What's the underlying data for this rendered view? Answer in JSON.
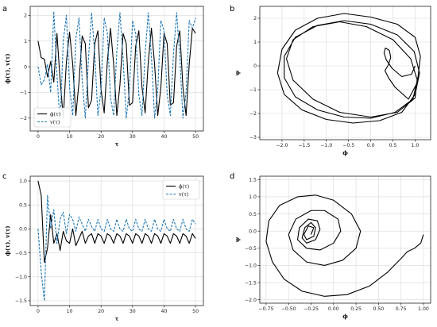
{
  "figure": {
    "panel_letters": [
      "a",
      "b",
      "c",
      "d"
    ]
  },
  "colors": {
    "phi": "#000000",
    "v": "#1f77b4",
    "grid": "#d9d9d9",
    "axis": "#000000"
  },
  "chart_data": [
    {
      "panel": "a",
      "type": "line",
      "title": "",
      "xlabel": "τ",
      "ylabel": "ϕ(τ), v(τ)",
      "xlim": [
        -2.5,
        52.5
      ],
      "ylim": [
        -2.5,
        2.35
      ],
      "xticks": [
        0,
        10,
        20,
        30,
        40,
        50
      ],
      "yticks": [
        -2,
        -1,
        0,
        1,
        2
      ],
      "grid": true,
      "legend": {
        "placement": "lower-left",
        "entries": [
          "ϕ(τ)",
          "v(τ)"
        ]
      },
      "series": [
        {
          "name": "ϕ(τ)",
          "style": "solid",
          "color": "#000000",
          "x": [
            0,
            1,
            2,
            3,
            4,
            5,
            6,
            7,
            8,
            9,
            10,
            11,
            12,
            13,
            14,
            15,
            16,
            17,
            18,
            19,
            20,
            21,
            22,
            23,
            24,
            25,
            26,
            27,
            28,
            29,
            30,
            31,
            32,
            33,
            34,
            35,
            36,
            37,
            38,
            39,
            40,
            41,
            42,
            43,
            44,
            45,
            46,
            47,
            48,
            49,
            50
          ],
          "y": [
            1.0,
            0.35,
            0.3,
            -0.4,
            0.2,
            -0.6,
            1.3,
            -0.5,
            -2.0,
            0.2,
            1.35,
            0.1,
            -1.9,
            -0.6,
            1.2,
            0.9,
            -1.6,
            -1.3,
            0.9,
            1.4,
            -0.9,
            -1.8,
            0.2,
            1.5,
            0.1,
            -1.9,
            -0.7,
            1.3,
            0.9,
            -1.5,
            -1.4,
            0.8,
            1.4,
            -0.8,
            -1.8,
            0.2,
            1.5,
            0.1,
            -1.9,
            -0.8,
            1.3,
            0.9,
            -1.5,
            -1.4,
            0.8,
            1.4,
            -0.8,
            -1.9,
            0.1,
            1.5,
            1.3
          ]
        },
        {
          "name": "v(τ)",
          "style": "dashed",
          "color": "#1f77b4",
          "x": [
            0,
            1,
            2,
            3,
            4,
            5,
            6,
            7,
            8,
            9,
            10,
            11,
            12,
            13,
            14,
            15,
            16,
            17,
            18,
            19,
            20,
            21,
            22,
            23,
            24,
            25,
            26,
            27,
            28,
            29,
            30,
            31,
            32,
            33,
            34,
            35,
            36,
            37,
            38,
            39,
            40,
            41,
            42,
            43,
            44,
            45,
            46,
            47,
            48,
            49,
            50
          ],
          "y": [
            0.0,
            -0.7,
            -0.5,
            0.1,
            -1.0,
            2.15,
            -0.3,
            -2.2,
            1.0,
            2.0,
            -0.8,
            -1.9,
            1.1,
            1.9,
            -0.5,
            -2.0,
            0.3,
            2.1,
            0.5,
            -1.9,
            -0.9,
            1.9,
            1.3,
            -1.2,
            -1.9,
            0.6,
            2.1,
            0.3,
            -2.0,
            -0.9,
            1.8,
            1.3,
            -1.1,
            -1.9,
            0.5,
            2.1,
            0.4,
            -2.0,
            -0.9,
            1.8,
            1.4,
            -1.1,
            -1.9,
            0.5,
            2.1,
            0.4,
            -2.0,
            -1.0,
            1.8,
            1.5,
            1.9
          ]
        }
      ]
    },
    {
      "panel": "b",
      "type": "line",
      "title": "",
      "xlabel": "ϕ",
      "ylabel": "ψ",
      "xlim": [
        -2.5,
        1.35
      ],
      "ylim": [
        -3.1,
        2.5
      ],
      "xticks": [
        -2.0,
        -1.5,
        -1.0,
        -0.5,
        0.0,
        0.5,
        1.0
      ],
      "yticks": [
        -3,
        -2,
        -1,
        0,
        1,
        2
      ],
      "grid": true,
      "legend": null,
      "series": [
        {
          "style": "solid",
          "color": "#000000",
          "x": [
            1.0,
            0.92,
            0.7,
            0.48,
            0.35,
            0.3,
            0.33,
            0.42,
            0.45,
            0.4,
            0.32,
            0.4,
            0.55,
            0.85,
            1.05,
            1.12,
            1.0,
            0.6,
            0.0,
            -0.6,
            -1.2,
            -1.7,
            -2.0,
            -2.1,
            -1.95,
            -1.55,
            -1.0,
            -0.4,
            0.2,
            0.7,
            1.0,
            1.1,
            0.98,
            0.6,
            0.0,
            -0.6,
            -1.2,
            -1.7,
            -1.95,
            -1.95,
            -1.7,
            -1.2,
            -0.6,
            0.0,
            0.55,
            0.95,
            1.05,
            0.9,
            0.5,
            -0.1,
            -0.7,
            -1.3,
            -1.75,
            -1.9,
            -1.75,
            -1.3,
            -0.7,
            0.0,
            0.6,
            1.0,
            1.05
          ],
          "y": [
            0.0,
            -0.35,
            -0.45,
            -0.1,
            0.25,
            0.55,
            0.75,
            0.65,
            0.35,
            0.05,
            -0.2,
            -0.5,
            -0.9,
            -1.4,
            -0.7,
            0.4,
            1.2,
            1.75,
            2.05,
            2.2,
            2.0,
            1.5,
            0.7,
            -0.3,
            -1.2,
            -1.85,
            -2.25,
            -2.4,
            -2.3,
            -1.95,
            -1.2,
            -0.3,
            0.6,
            1.3,
            1.75,
            1.9,
            1.7,
            1.2,
            0.4,
            -0.5,
            -1.3,
            -1.85,
            -2.15,
            -2.2,
            -1.95,
            -1.4,
            -0.6,
            0.3,
            1.1,
            1.65,
            1.85,
            1.65,
            1.1,
            0.3,
            -0.6,
            -1.4,
            -1.95,
            -2.15,
            -1.95,
            -1.35,
            -0.5
          ]
        }
      ]
    },
    {
      "panel": "c",
      "type": "line",
      "title": "",
      "xlabel": "τ",
      "ylabel": "ϕ(τ), v(τ)",
      "xlim": [
        -2.5,
        52.5
      ],
      "ylim": [
        -1.6,
        1.1
      ],
      "xticks": [
        0,
        10,
        20,
        30,
        40,
        50
      ],
      "yticks": [
        -1.5,
        -1.0,
        -0.5,
        0.0,
        0.5,
        1.0
      ],
      "grid": true,
      "legend": {
        "placement": "top-right",
        "entries": [
          "ϕ(τ)",
          "v(τ)"
        ]
      },
      "series": [
        {
          "name": "ϕ(τ)",
          "style": "solid",
          "color": "#000000",
          "x": [
            0,
            1,
            2,
            3,
            4,
            5,
            6,
            7,
            8,
            9,
            10,
            11,
            12,
            13,
            14,
            15,
            16,
            17,
            18,
            19,
            20,
            21,
            22,
            23,
            24,
            25,
            26,
            27,
            28,
            29,
            30,
            31,
            32,
            33,
            34,
            35,
            36,
            37,
            38,
            39,
            40,
            41,
            42,
            43,
            44,
            45,
            46,
            47,
            48,
            49,
            50
          ],
          "y": [
            1.0,
            0.7,
            -0.7,
            -0.4,
            0.3,
            -0.3,
            -0.1,
            -0.45,
            -0.05,
            -0.25,
            -0.3,
            0.0,
            -0.35,
            -0.2,
            -0.05,
            -0.3,
            -0.15,
            -0.1,
            -0.3,
            -0.1,
            -0.15,
            -0.3,
            -0.1,
            -0.15,
            -0.3,
            -0.1,
            -0.15,
            -0.3,
            -0.1,
            -0.15,
            -0.3,
            -0.1,
            -0.15,
            -0.3,
            -0.1,
            -0.15,
            -0.3,
            -0.1,
            -0.15,
            -0.3,
            -0.1,
            -0.15,
            -0.3,
            -0.1,
            -0.15,
            -0.3,
            -0.1,
            -0.15,
            -0.3,
            -0.1,
            -0.2
          ]
        },
        {
          "name": "v(τ)",
          "style": "dashed",
          "color": "#1f77b4",
          "x": [
            0,
            1,
            2,
            3,
            4,
            5,
            6,
            7,
            8,
            9,
            10,
            11,
            12,
            13,
            14,
            15,
            16,
            17,
            18,
            19,
            20,
            21,
            22,
            23,
            24,
            25,
            26,
            27,
            28,
            29,
            30,
            31,
            32,
            33,
            34,
            35,
            36,
            37,
            38,
            39,
            40,
            41,
            42,
            43,
            44,
            45,
            46,
            47,
            48,
            49,
            50
          ],
          "y": [
            0.0,
            -0.9,
            -1.5,
            0.7,
            0.0,
            0.4,
            -0.3,
            0.2,
            0.35,
            -0.1,
            0.3,
            0.2,
            -0.05,
            0.25,
            0.1,
            -0.05,
            0.2,
            0.05,
            -0.05,
            0.2,
            0.0,
            -0.05,
            0.2,
            0.0,
            -0.05,
            0.2,
            0.0,
            -0.05,
            0.2,
            0.0,
            -0.05,
            0.2,
            0.0,
            -0.05,
            0.2,
            0.0,
            -0.05,
            0.2,
            0.0,
            -0.05,
            0.2,
            0.0,
            -0.05,
            0.2,
            0.0,
            -0.05,
            0.2,
            0.0,
            -0.05,
            0.2,
            0.1
          ]
        }
      ]
    },
    {
      "panel": "d",
      "type": "line",
      "title": "",
      "xlabel": "ϕ",
      "ylabel": "ψ",
      "xlim": [
        -0.82,
        1.08
      ],
      "ylim": [
        -2.1,
        1.6
      ],
      "xticks": [
        -0.75,
        -0.5,
        -0.25,
        0.0,
        0.25,
        0.5,
        0.75,
        1.0
      ],
      "yticks": [
        -2.0,
        -1.5,
        -1.0,
        -0.5,
        0.0,
        0.5,
        1.0,
        1.5
      ],
      "grid": true,
      "legend": null,
      "series": [
        {
          "style": "solid",
          "color": "#000000",
          "x": [
            1.0,
            0.97,
            0.9,
            0.82,
            0.75,
            0.6,
            0.4,
            0.15,
            -0.1,
            -0.35,
            -0.55,
            -0.68,
            -0.75,
            -0.72,
            -0.6,
            -0.4,
            -0.2,
            0.0,
            0.2,
            0.3,
            0.25,
            0.1,
            -0.1,
            -0.3,
            -0.45,
            -0.5,
            -0.42,
            -0.25,
            -0.1,
            0.05,
            0.08,
            0.0,
            -0.15,
            -0.3,
            -0.4,
            -0.38,
            -0.28,
            -0.18,
            -0.15,
            -0.2,
            -0.3,
            -0.35,
            -0.32,
            -0.25,
            -0.2,
            -0.22,
            -0.3,
            -0.33,
            -0.28,
            -0.22,
            -0.25
          ],
          "y": [
            -0.1,
            -0.35,
            -0.5,
            -0.6,
            -0.8,
            -1.2,
            -1.6,
            -1.85,
            -1.9,
            -1.75,
            -1.4,
            -0.9,
            -0.3,
            0.3,
            0.75,
            1.0,
            1.05,
            0.9,
            0.5,
            0.0,
            -0.5,
            -0.85,
            -1.0,
            -0.9,
            -0.55,
            -0.1,
            0.35,
            0.6,
            0.6,
            0.35,
            0.0,
            -0.35,
            -0.55,
            -0.5,
            -0.25,
            0.1,
            0.35,
            0.3,
            0.05,
            -0.25,
            -0.35,
            -0.2,
            0.1,
            0.25,
            0.1,
            -0.15,
            -0.25,
            -0.1,
            0.15,
            0.1,
            -0.1
          ]
        }
      ]
    }
  ]
}
